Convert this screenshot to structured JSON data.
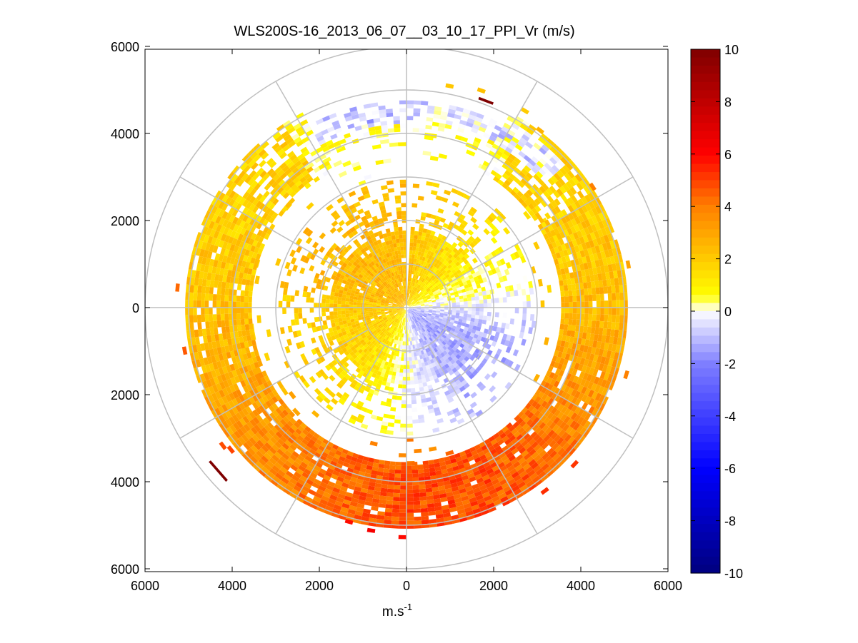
{
  "chart_data": {
    "type": "heatmap",
    "subtype": "polar-ppi",
    "title": "WLS200S-16_2013_06_07__03_10_17_PPI_Vr (m/s)",
    "xlabel": "m.s",
    "xlabel_superscript": "-1",
    "ylabel": "",
    "xlim": [
      -6000,
      6000
    ],
    "ylim": [
      -6000,
      6000
    ],
    "x_tick_labels": [
      "6000",
      "4000",
      "2000",
      "0",
      "2000",
      "4000",
      "6000"
    ],
    "y_tick_labels": [
      "6000",
      "4000",
      "2000",
      "0",
      "2000",
      "4000",
      "6000"
    ],
    "x_tick_values": [
      -6000,
      -4000,
      -2000,
      0,
      2000,
      4000,
      6000
    ],
    "y_tick_values": [
      6000,
      4000,
      2000,
      0,
      -2000,
      -4000,
      -6000
    ],
    "polar_rings": [
      1000,
      2000,
      3000,
      4000,
      5000,
      6000
    ],
    "polar_spokes_deg": [
      0,
      30,
      60,
      90,
      120,
      150,
      180,
      210,
      240,
      270,
      300,
      330
    ],
    "colorbar": {
      "min": -10,
      "max": 10,
      "tick_labels": [
        "10",
        "8",
        "6",
        "4",
        "2",
        "0",
        "-2",
        "-4",
        "-6",
        "-8",
        "-10"
      ],
      "tick_values": [
        10,
        8,
        6,
        4,
        2,
        0,
        -2,
        -4,
        -6,
        -8,
        -10
      ],
      "colormap_stops": [
        {
          "v": -10,
          "color": "#00007f"
        },
        {
          "v": -6,
          "color": "#0000ff"
        },
        {
          "v": -2,
          "color": "#7f7fff"
        },
        {
          "v": 0,
          "color": "#ffffff"
        },
        {
          "v": 0.6,
          "color": "#ffff00"
        },
        {
          "v": 4,
          "color": "#ff7f00"
        },
        {
          "v": 6,
          "color": "#ff0000"
        },
        {
          "v": 10,
          "color": "#7f0000"
        }
      ]
    },
    "scan": {
      "range_start": 60,
      "gate_length": 90,
      "inner_gates_to": 2900,
      "outer_ring_from": 3950,
      "outer_ring_to": 5050,
      "description_of_field": "Radial velocity PPI: positive (yellow-orange-red) west and south, negative (blue) in south-east inner region and north inner ring"
    }
  }
}
